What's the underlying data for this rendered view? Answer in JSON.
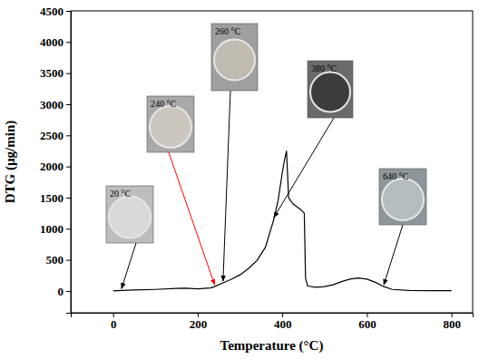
{
  "chart_data": {
    "type": "line",
    "x_label": "Temperature (°C)",
    "y_label": "DTG (µg/min)",
    "x": [
      0,
      20,
      50,
      100,
      150,
      170,
      200,
      230,
      240,
      260,
      280,
      300,
      320,
      340,
      360,
      380,
      390,
      400,
      405,
      410,
      415,
      425,
      435,
      445,
      452,
      455,
      460,
      480,
      500,
      520,
      540,
      560,
      580,
      600,
      620,
      640,
      660,
      700,
      750,
      800
    ],
    "values": [
      0,
      10,
      15,
      25,
      40,
      45,
      35,
      50,
      70,
      130,
      190,
      260,
      360,
      490,
      700,
      1150,
      1450,
      1900,
      2100,
      2250,
      1500,
      1400,
      1350,
      1300,
      1250,
      200,
      80,
      60,
      70,
      100,
      150,
      190,
      210,
      190,
      140,
      70,
      25,
      10,
      5,
      5
    ],
    "color": "#000000",
    "xlim": [
      -100,
      850
    ],
    "ylim": [
      -350,
      4500
    ],
    "xticks": [
      0,
      200,
      400,
      600,
      800
    ],
    "yticks": [
      0,
      500,
      1000,
      1500,
      2000,
      2500,
      3000,
      3500,
      4000,
      4500
    ],
    "annotations": [
      {
        "label": "20 °C",
        "x": 20,
        "y": 10,
        "color": "#000000"
      },
      {
        "label": "240 °C",
        "x": 240,
        "y": 70,
        "color": "#ff0000"
      },
      {
        "label": "260 °C",
        "x": 260,
        "y": 130,
        "color": "#000000"
      },
      {
        "label": "380 °C",
        "x": 380,
        "y": 1150,
        "color": "#000000"
      },
      {
        "label": "640 °C",
        "x": 640,
        "y": 70,
        "color": "#000000"
      }
    ]
  }
}
